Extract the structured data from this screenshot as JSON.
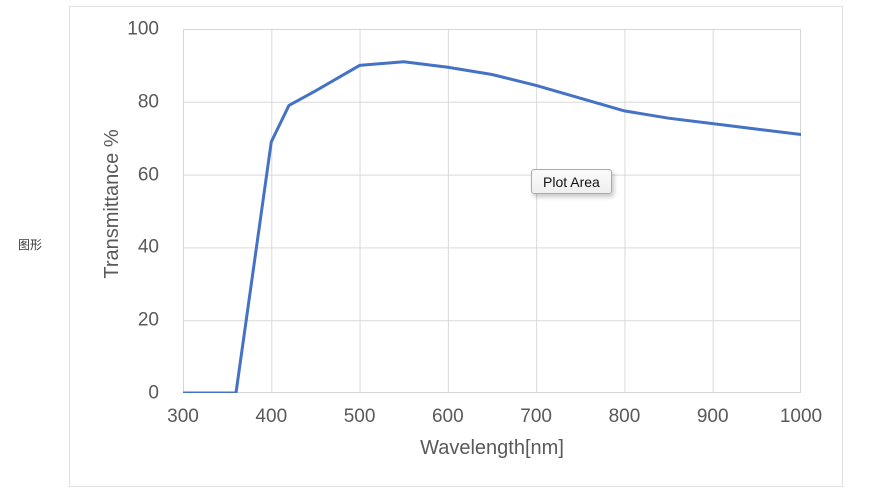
{
  "side_label": "图形",
  "tooltip": {
    "label": "Plot Area"
  },
  "colors": {
    "series": "#4472C4",
    "gridline": "#D9D9D9",
    "plot_border": "#D6D6D6",
    "tick_text": "#595959",
    "container_border": "#E0E0E0"
  },
  "chart_data": {
    "type": "line",
    "title": "",
    "xlabel": "Wavelength[nm]",
    "ylabel": "Transmittance %",
    "xlim": [
      300,
      1000
    ],
    "ylim": [
      0,
      100
    ],
    "x_ticks": [
      300,
      400,
      500,
      600,
      700,
      800,
      900,
      1000
    ],
    "y_ticks": [
      0,
      20,
      40,
      60,
      80,
      100
    ],
    "grid": true,
    "legend": false,
    "annotations": [
      "Plot Area"
    ],
    "series": [
      {
        "name": "Transmittance",
        "x": [
          300,
          360,
          400,
          420,
          450,
          500,
          550,
          600,
          650,
          700,
          750,
          800,
          850,
          900,
          950,
          1000
        ],
        "y": [
          0,
          0,
          69,
          79,
          83,
          90,
          91,
          89.5,
          87.5,
          84.5,
          81,
          77.5,
          75.5,
          74,
          72.5,
          71
        ]
      }
    ]
  }
}
